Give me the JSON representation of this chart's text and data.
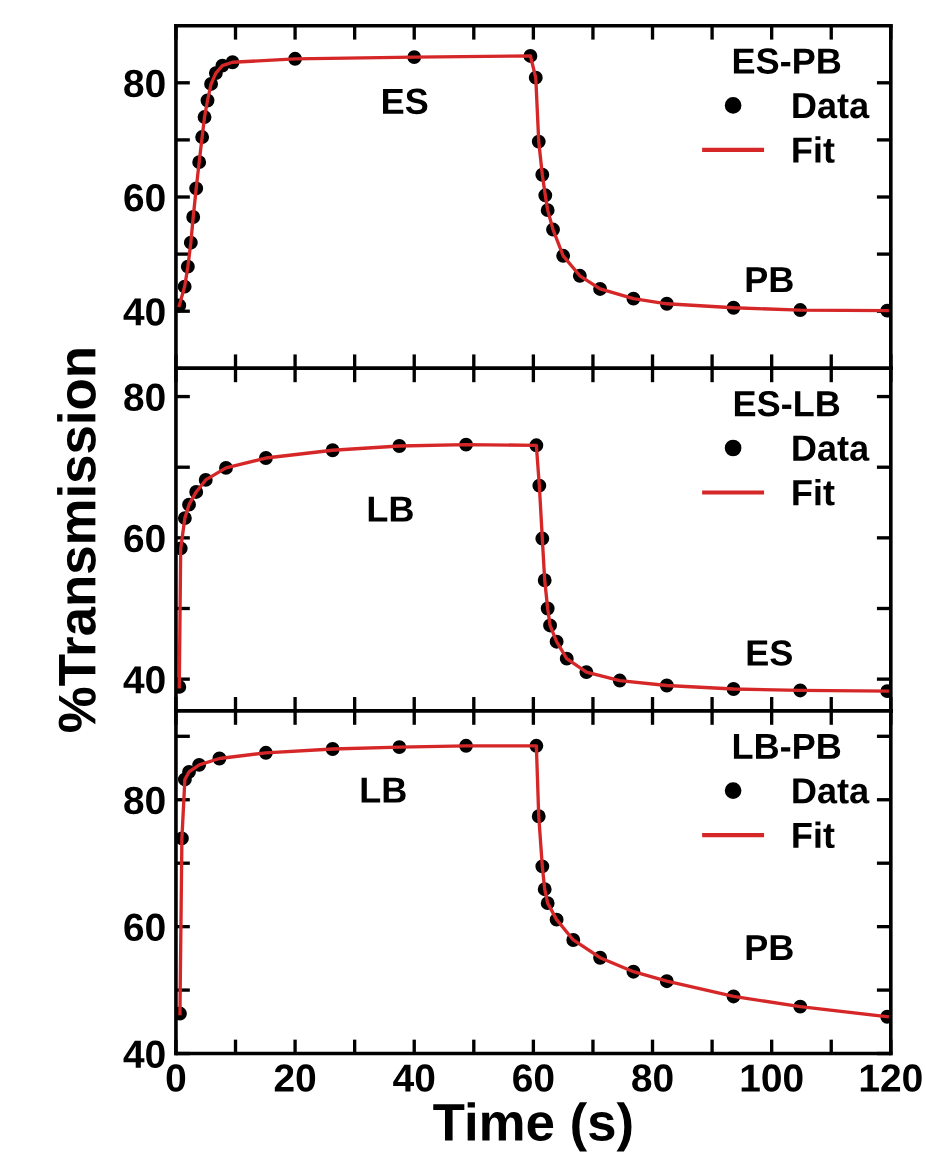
{
  "chart_data": [
    {
      "type": "scatter",
      "legend_title": "ES-PB",
      "legend": "top right",
      "tick_labels": "y",
      "xlim": [
        0,
        120
      ],
      "xticks": [
        0,
        {
          "value": 10,
          "label": null
        },
        20,
        {
          "value": 30,
          "label": null
        },
        40,
        {
          "value": 50,
          "label": null
        },
        60,
        {
          "value": 70,
          "label": null
        },
        80,
        {
          "value": 90,
          "label": null
        },
        100,
        {
          "value": 110,
          "label": null
        },
        120
      ],
      "ylim": [
        30,
        90
      ],
      "yticks": [
        40,
        {
          "value": 50,
          "label": null
        },
        60,
        {
          "value": 70,
          "label": null
        },
        80
      ],
      "x": [
        0.56,
        1.46,
        2.0,
        2.5,
        2.9,
        3.4,
        3.9,
        4.4,
        4.8,
        5.3,
        5.9,
        6.7,
        7.8,
        9.5,
        20,
        40,
        59.5,
        60.4,
        60.9,
        61.5,
        62.0,
        62.4,
        63.3,
        65.0,
        67.8,
        71.2,
        76.8,
        82.4,
        93.6,
        104.8,
        119.4
      ],
      "series": [
        {
          "name": "Data",
          "color": "#000000",
          "values": [
            41.0,
            44.3,
            47.8,
            52.0,
            56.5,
            61.5,
            66.1,
            70.5,
            74.0,
            76.9,
            79.8,
            81.7,
            83.0,
            83.6,
            84.2,
            84.5,
            84.7,
            80.9,
            69.7,
            63.9,
            60.3,
            57.7,
            54.3,
            49.7,
            46.2,
            43.9,
            42.2,
            41.3,
            40.6,
            40.2,
            40.1
          ]
        },
        {
          "name": "Fit",
          "type": "line",
          "color": "#d62728",
          "values": [
            41.0,
            44.3,
            47.8,
            52.0,
            56.5,
            61.5,
            66.1,
            70.5,
            74.0,
            76.9,
            79.8,
            81.7,
            83.0,
            83.6,
            84.2,
            84.5,
            84.7,
            80.9,
            69.7,
            63.9,
            60.3,
            57.7,
            54.3,
            49.7,
            46.2,
            43.9,
            42.2,
            41.3,
            40.6,
            40.2,
            40.1
          ]
        }
      ],
      "annotations": [
        "ES",
        "PB"
      ]
    },
    {
      "type": "scatter",
      "legend_title": "ES-LB",
      "legend": "top right",
      "tick_labels": "y",
      "ylabel": "%Transmission",
      "xlim": [
        0,
        120
      ],
      "xticks": [
        0,
        {
          "value": 10,
          "label": null
        },
        20,
        {
          "value": 30,
          "label": null
        },
        40,
        {
          "value": 50,
          "label": null
        },
        60,
        {
          "value": 70,
          "label": null
        },
        80,
        {
          "value": 90,
          "label": null
        },
        100,
        {
          "value": 110,
          "label": null
        },
        120
      ],
      "ylim": [
        35.5,
        84
      ],
      "yticks": [
        40,
        {
          "value": 50,
          "label": null
        },
        60,
        {
          "value": 70,
          "label": null
        },
        80
      ],
      "x": [
        0.56,
        0.8,
        1.5,
        2.2,
        3.4,
        5.0,
        8.4,
        15.1,
        26.3,
        37.5,
        48.7,
        60.5,
        61.0,
        61.5,
        61.9,
        62.4,
        62.8,
        63.9,
        65.6,
        68.9,
        74.5,
        82.4,
        93.6,
        104.8,
        119.4
      ],
      "series": [
        {
          "name": "Data",
          "color": "#000000",
          "values": [
            38.9,
            58.5,
            62.8,
            64.7,
            66.5,
            68.2,
            69.9,
            71.3,
            72.4,
            73.0,
            73.2,
            73.1,
            67.4,
            59.9,
            54.0,
            50.0,
            47.6,
            45.3,
            42.9,
            41.0,
            39.8,
            39.1,
            38.6,
            38.4,
            38.3
          ]
        },
        {
          "name": "Fit",
          "type": "line",
          "color": "#d62728",
          "values": [
            38.9,
            58.5,
            62.8,
            64.7,
            66.5,
            68.2,
            69.9,
            71.3,
            72.4,
            73.0,
            73.2,
            73.1,
            67.4,
            59.9,
            54.0,
            50.0,
            47.6,
            45.3,
            42.9,
            41.0,
            39.8,
            39.1,
            38.6,
            38.4,
            38.3
          ]
        }
      ],
      "annotations": [
        "LB",
        "ES"
      ]
    },
    {
      "type": "scatter",
      "legend_title": "LB-PB",
      "legend": "top right",
      "xlabel": "Time (s)",
      "xlim": [
        0,
        120
      ],
      "xticks": [
        0,
        {
          "value": 10,
          "label": null
        },
        20,
        {
          "value": 30,
          "label": null
        },
        40,
        {
          "value": 50,
          "label": null
        },
        60,
        {
          "value": 70,
          "label": null
        },
        80,
        {
          "value": 90,
          "label": null
        },
        100,
        {
          "value": 110,
          "label": null
        },
        120
      ],
      "ylim": [
        40,
        94
      ],
      "yticks": [
        40,
        {
          "value": 50,
          "label": null
        },
        60,
        {
          "value": 70,
          "label": null
        },
        80,
        {
          "value": 90,
          "label": null
        }
      ],
      "x": [
        0.67,
        1.0,
        1.5,
        2.2,
        3.9,
        7.3,
        15.1,
        26.3,
        37.5,
        48.7,
        60.5,
        60.9,
        61.5,
        61.9,
        62.4,
        63.9,
        66.7,
        71.2,
        76.8,
        82.4,
        93.6,
        104.8,
        119.4
      ],
      "series": [
        {
          "name": "Data",
          "color": "#000000",
          "values": [
            46.3,
            73.9,
            83.2,
            84.4,
            85.5,
            86.5,
            87.4,
            88.0,
            88.3,
            88.5,
            88.5,
            77.4,
            69.5,
            65.9,
            63.7,
            61.1,
            57.9,
            55.1,
            52.9,
            51.4,
            49.0,
            47.4,
            45.8
          ]
        },
        {
          "name": "Fit",
          "type": "line",
          "color": "#d62728",
          "values": [
            46.3,
            73.9,
            83.2,
            84.4,
            85.5,
            86.5,
            87.4,
            88.0,
            88.3,
            88.5,
            88.5,
            77.4,
            69.5,
            65.9,
            63.7,
            61.1,
            57.9,
            55.1,
            52.9,
            51.4,
            49.0,
            47.4,
            45.8
          ]
        }
      ],
      "annotations": [
        "LB",
        "PB"
      ]
    }
  ]
}
